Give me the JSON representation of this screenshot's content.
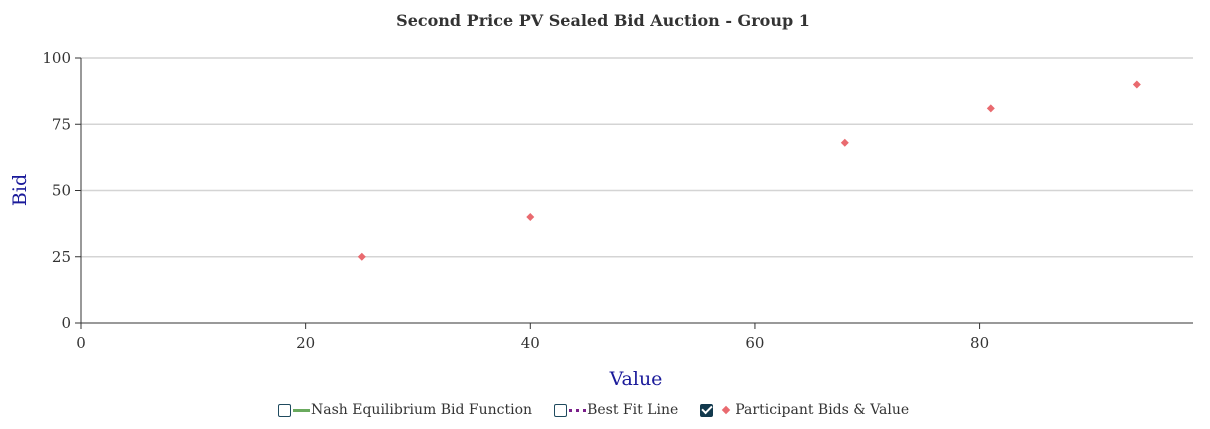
{
  "chart_data": {
    "type": "scatter",
    "title": "Second Price PV Sealed Bid Auction - Group 1",
    "xlabel": "Value",
    "ylabel": "Bid",
    "xlim": [
      0,
      99
    ],
    "ylim": [
      0,
      100
    ],
    "xticks": [
      0,
      20,
      40,
      60,
      80
    ],
    "yticks": [
      0,
      25,
      50,
      75,
      100
    ],
    "grid": "horizontal",
    "legend_position": "bottom",
    "series": [
      {
        "name": "Nash Equilibrium Bid Function",
        "color": "#6aaa5e",
        "style": "solid",
        "visible": false,
        "values": []
      },
      {
        "name": "Best Fit Line",
        "color": "#7a1f8a",
        "style": "dotted",
        "visible": false,
        "values": []
      },
      {
        "name": "Participant Bids & Value",
        "color": "#e96a6f",
        "marker": "diamond",
        "visible": true,
        "points": [
          {
            "x": 25,
            "y": 25
          },
          {
            "x": 40,
            "y": 40
          },
          {
            "x": 68,
            "y": 68
          },
          {
            "x": 81,
            "y": 81
          },
          {
            "x": 94,
            "y": 90
          }
        ]
      }
    ]
  }
}
